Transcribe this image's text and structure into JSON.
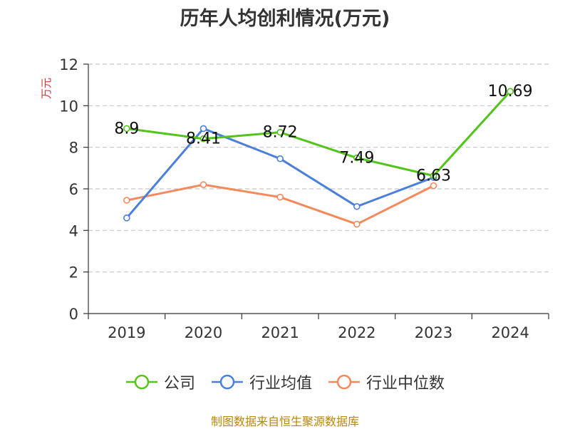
{
  "title": "历年人均创利情况(万元)",
  "footer": "制图数据来自恒生聚源数据库",
  "colors": {
    "company": "#52c41a",
    "industry_avg": "#4a7fdc",
    "industry_median": "#f5895b",
    "axis": "#333333",
    "grid": "#c8c8c8",
    "ylabel": "#e03030"
  },
  "chart_data": {
    "type": "line",
    "categories": [
      "2019",
      "2020",
      "2021",
      "2022",
      "2023",
      "2024"
    ],
    "ylabel": "万元",
    "ylim": [
      0,
      12
    ],
    "yticks": [
      0,
      2,
      4,
      6,
      8,
      10,
      12
    ],
    "grid": true,
    "legend_position": "bottom",
    "series": [
      {
        "name": "公司",
        "values": [
          8.9,
          8.41,
          8.72,
          7.49,
          6.63,
          10.69
        ],
        "labels": [
          "8.9",
          "8.41",
          "8.72",
          "7.49",
          "6.63",
          "10.69"
        ]
      },
      {
        "name": "行业均值",
        "values": [
          4.6,
          8.9,
          7.45,
          5.15,
          6.55,
          null
        ]
      },
      {
        "name": "行业中位数",
        "values": [
          5.45,
          6.2,
          5.6,
          4.3,
          6.15,
          null
        ]
      }
    ]
  }
}
